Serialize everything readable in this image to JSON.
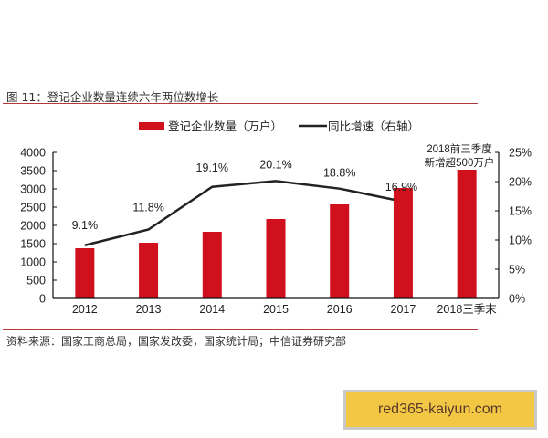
{
  "figure": {
    "title": "图 11：登记企业数量连续六年两位数增长",
    "source": "资料来源：国家工商总局，国家发改委，国家统计局；中信证券研究部"
  },
  "watermark": {
    "text": "red365-kaiyun.com"
  },
  "colors": {
    "bar": "#d0101c",
    "line": "#222222",
    "rule": "#b23a3a",
    "watermark_bg": "#f2c744"
  },
  "chart_data": {
    "type": "bar+line",
    "title": "登记企业连续六年两位数增长",
    "categories": [
      "2012",
      "2013",
      "2014",
      "2015",
      "2016",
      "2017",
      "2018三季末"
    ],
    "series": [
      {
        "name": "登记企业数量（万户）",
        "type": "bar",
        "axis": "left",
        "values": [
          1375,
          1525,
          1825,
          2175,
          2575,
          3025,
          3525
        ]
      },
      {
        "name": "同比增速（右轴）",
        "type": "line",
        "axis": "right",
        "values": [
          9.1,
          11.8,
          19.1,
          20.1,
          18.8,
          16.9,
          null
        ],
        "labels": [
          "9.1%",
          "11.8%",
          "19.1%",
          "20.1%",
          "18.8%",
          "16.9%"
        ]
      }
    ],
    "left_axis": {
      "ylim": [
        0,
        4000
      ],
      "ticks": [
        "0",
        "500",
        "1000",
        "1500",
        "2000",
        "2500",
        "3000",
        "3500",
        "4000"
      ]
    },
    "right_axis": {
      "ylim": [
        0,
        25
      ],
      "ticks": [
        "0%",
        "5%",
        "10%",
        "15%",
        "20%",
        "25%"
      ]
    },
    "annotation": {
      "line1": "2018前三季度",
      "line2": "新增超500万户"
    },
    "legend": {
      "position": "top",
      "bar_label": "登记企业数量（万户）",
      "line_label": "同比增速（右轴）"
    },
    "grid": false
  }
}
